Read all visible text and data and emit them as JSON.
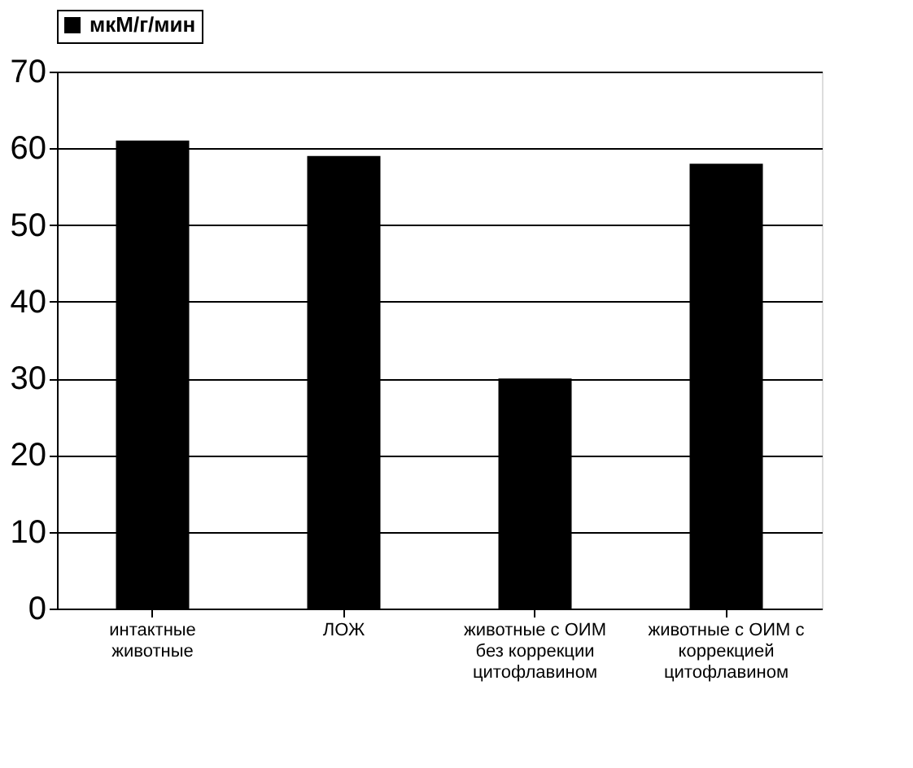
{
  "chart_data": {
    "type": "bar",
    "categories": [
      "интактные\nживотные",
      "ЛОЖ",
      "животные с ОИМ\nбез коррекции\nцитофлавином",
      "животные с ОИМ с\nкоррекцией\nцитофлавином"
    ],
    "series": [
      {
        "name": "мкМ/г/мин",
        "color": "#000000",
        "values": [
          61,
          59,
          30,
          58
        ]
      }
    ],
    "ylim": [
      0,
      70
    ],
    "yticks": [
      0,
      10,
      20,
      30,
      40,
      50,
      60,
      70
    ],
    "grid": "y",
    "legend": "top left"
  }
}
